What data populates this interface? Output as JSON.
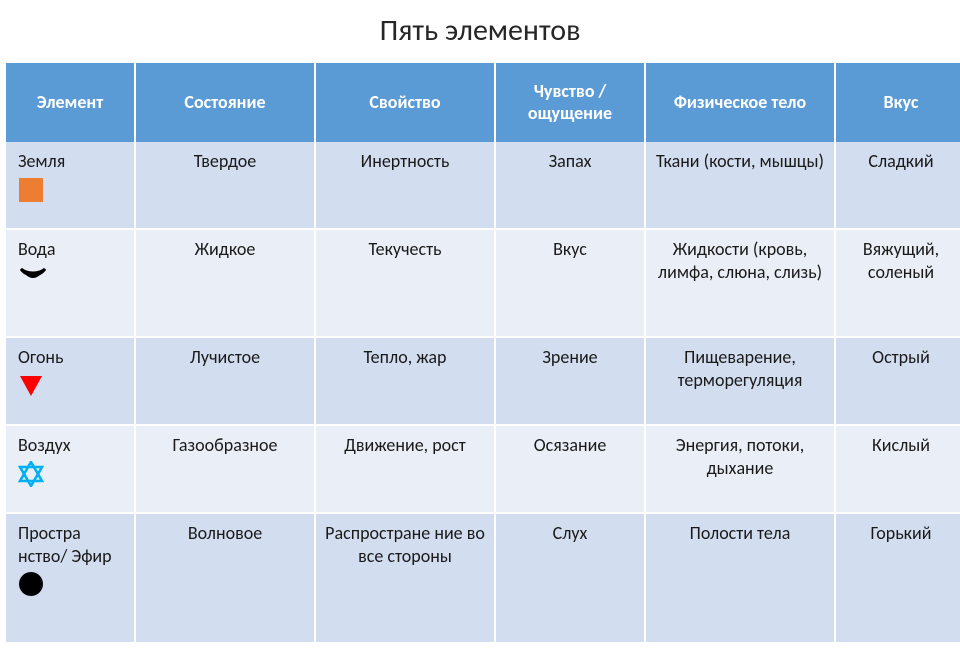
{
  "title": "Пять элементов",
  "table": {
    "header_bg": "#5b9bd5",
    "header_fg": "#ffffff",
    "row_bg_odd": "#d2deef",
    "row_bg_even": "#eaeff7",
    "border_color": "#ffffff",
    "text_color": "#1a1a1a",
    "title_fontsize": 30,
    "header_fontsize": 18,
    "body_fontsize": 18,
    "columns": [
      "Элемент",
      "Состояние",
      "Свойство",
      "Чувство / ощущение",
      "Физическое тело",
      "Вкус"
    ],
    "rows": [
      {
        "element": "Земля",
        "icon": "square",
        "icon_color": "#ed7d31",
        "state": "Твердое",
        "property": "Инертность",
        "sense": "Запах",
        "body": "Ткани (кости, мышцы)",
        "taste": "Сладкий"
      },
      {
        "element": "Вода",
        "icon": "crescent",
        "icon_color": "#000000",
        "state": "Жидкое",
        "property": "Текучесть",
        "sense": "Вкус",
        "body": "Жидкости (кровь, лимфа, слюна, слизь)",
        "taste": "Вяжущий, соленый"
      },
      {
        "element": "Огонь",
        "icon": "triangle-down",
        "icon_color": "#ff0000",
        "state": "Лучистое",
        "property": "Тепло, жар",
        "sense": "Зрение",
        "body": "Пищеварение, терморегуляция",
        "taste": "Острый"
      },
      {
        "element": "Воздух",
        "icon": "hexagram",
        "icon_color": "#00b0f0",
        "state": "Газообразное",
        "property": "Движение, рост",
        "sense": "Осязание",
        "body": "Энергия, потоки, дыхание",
        "taste": "Кислый"
      },
      {
        "element": "Простра нство/ Эфир",
        "icon": "circle",
        "icon_color": "#000000",
        "state": "Волновое",
        "property": "Распростране ние во все стороны",
        "sense": "Слух",
        "body": "Полости тела",
        "taste": "Горький"
      }
    ]
  }
}
